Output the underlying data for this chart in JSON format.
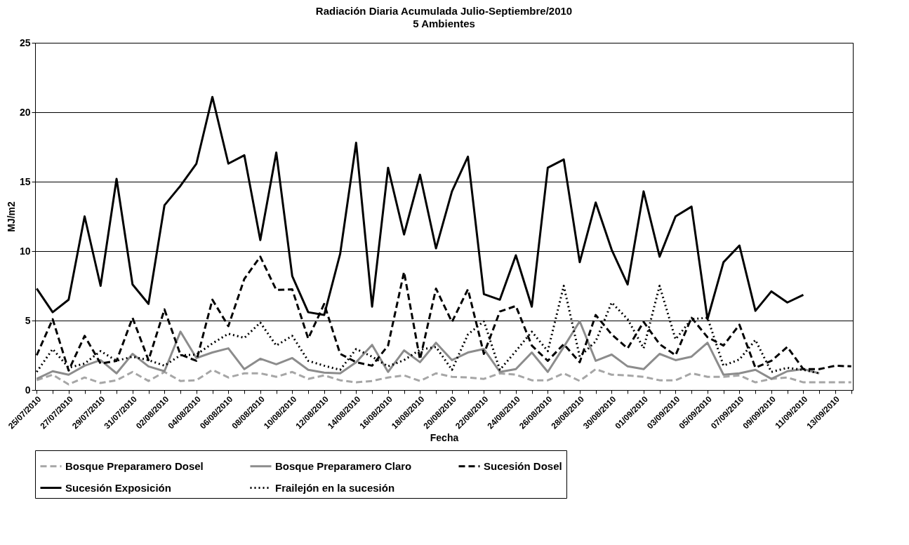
{
  "chart_data": {
    "type": "line",
    "title": "Radiación Diaria Acumulada Julio-Septiembre/2010",
    "subtitle": "5 Ambientes",
    "xlabel": "Fecha",
    "ylabel": "MJ/m2",
    "categories": [
      "25/07/2010",
      null,
      "27/07/2010",
      null,
      "29/07/2010",
      null,
      "31/07/2010",
      null,
      "02/08/2010",
      null,
      "04/08/2010",
      null,
      "06/08/2010",
      null,
      "08/08/2010",
      null,
      "10/08/2010",
      null,
      "12/08/2010",
      null,
      "14/08/2010",
      null,
      "16/08/2010",
      null,
      "18/08/2010",
      null,
      "20/08/2010",
      null,
      "22/08/2010",
      null,
      "24/08/2010",
      null,
      "26/08/2010",
      null,
      "28/08/2010",
      null,
      "30/08/2010",
      null,
      "01/09/2010",
      null,
      "03/09/2010",
      null,
      "05/09/2010",
      null,
      "07/09/2010",
      null,
      "09/09/2010",
      null,
      "11/09/2010",
      null,
      "13/09/2010",
      null
    ],
    "ylim": [
      0,
      25
    ],
    "yticks": [
      0,
      5,
      10,
      15,
      20,
      25
    ],
    "grid": "y",
    "legend": "bottom",
    "marker": "none",
    "series": [
      {
        "name": "Bosque Preparamero Dosel",
        "color": "#a6a6a6",
        "line_style": "dashed",
        "values": [
          0.7,
          1.1,
          0.4,
          0.9,
          0.5,
          0.7,
          1.3,
          0.65,
          1.3,
          0.65,
          0.7,
          1.45,
          0.9,
          1.2,
          1.2,
          0.95,
          1.3,
          0.8,
          1.05,
          0.7,
          0.55,
          0.65,
          0.9,
          1.05,
          0.65,
          1.2,
          0.95,
          0.9,
          0.8,
          1.2,
          1.1,
          0.7,
          0.7,
          1.2,
          0.65,
          1.5,
          1.1,
          1.05,
          0.95,
          0.7,
          0.7,
          1.2,
          0.95,
          0.95,
          1.05,
          0.55,
          0.8,
          0.9,
          0.55,
          0.55,
          0.55,
          0.55
        ]
      },
      {
        "name": "Bosque Preparamero Claro",
        "color": "#8c8c8c",
        "line_style": "solid",
        "values": [
          0.8,
          1.35,
          1.1,
          1.75,
          2.15,
          1.2,
          2.6,
          1.7,
          1.35,
          4.2,
          2.3,
          2.7,
          3.0,
          1.5,
          2.25,
          1.85,
          2.3,
          1.45,
          1.25,
          1.2,
          2.0,
          3.25,
          1.3,
          2.85,
          2.0,
          3.4,
          2.15,
          2.7,
          2.95,
          1.3,
          1.5,
          2.7,
          1.3,
          3.1,
          4.95,
          2.1,
          2.55,
          1.7,
          1.5,
          2.6,
          2.15,
          2.4,
          3.4,
          1.1,
          1.2,
          1.45,
          0.8,
          1.35,
          1.5,
          1.2,
          null,
          null
        ]
      },
      {
        "name": "Sucesión Dosel",
        "color": "#000000",
        "line_style": "dashed",
        "values": [
          2.5,
          5.1,
          1.4,
          3.9,
          1.9,
          2.1,
          5.2,
          2.15,
          5.8,
          2.55,
          2.1,
          6.5,
          4.6,
          8.0,
          9.6,
          7.2,
          7.25,
          3.7,
          6.2,
          2.6,
          2.0,
          1.75,
          3.2,
          8.5,
          2.2,
          7.3,
          4.9,
          7.25,
          2.6,
          5.65,
          6.05,
          3.2,
          2.1,
          3.3,
          2.0,
          5.4,
          4.0,
          3.0,
          4.9,
          3.3,
          2.5,
          5.2,
          3.8,
          3.2,
          4.7,
          1.6,
          2.1,
          3.1,
          1.5,
          1.5,
          1.75,
          1.7
        ]
      },
      {
        "name": "Sucesión Exposición",
        "color": "#000000",
        "line_style": "solid",
        "values": [
          7.3,
          5.6,
          6.5,
          12.5,
          7.5,
          15.2,
          7.6,
          6.2,
          13.3,
          14.7,
          16.3,
          21.1,
          16.3,
          16.9,
          10.8,
          17.1,
          8.2,
          5.6,
          5.4,
          9.8,
          17.8,
          6.0,
          16.0,
          11.2,
          15.5,
          10.2,
          14.3,
          16.8,
          6.9,
          6.5,
          9.7,
          6.0,
          16.0,
          16.6,
          9.2,
          13.5,
          10.1,
          7.6,
          14.3,
          9.6,
          12.5,
          13.2,
          5.1,
          9.2,
          10.4,
          5.7,
          7.1,
          6.3,
          6.85,
          null,
          null,
          null
        ]
      },
      {
        "name": "Frailejón en la sucesión",
        "color": "#000000",
        "line_style": "dotted",
        "values": [
          1.3,
          2.95,
          1.6,
          1.9,
          2.8,
          2.1,
          2.4,
          2.15,
          1.75,
          2.5,
          2.55,
          3.35,
          4.05,
          3.75,
          4.85,
          3.2,
          3.9,
          2.1,
          1.75,
          1.45,
          2.95,
          2.4,
          1.7,
          2.15,
          2.9,
          3.1,
          1.45,
          4.0,
          4.95,
          1.45,
          2.8,
          4.2,
          2.8,
          7.5,
          2.4,
          3.5,
          6.3,
          5.1,
          3.0,
          7.5,
          3.65,
          5.1,
          5.2,
          1.75,
          2.2,
          3.6,
          1.3,
          1.6,
          1.45,
          1.2,
          null,
          null
        ]
      }
    ]
  }
}
